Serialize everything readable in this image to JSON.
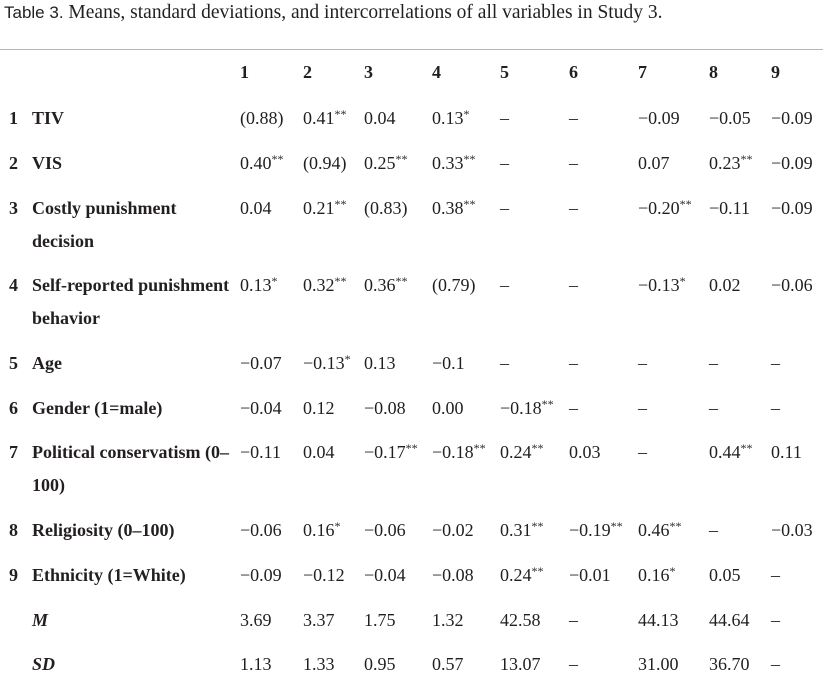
{
  "table": {
    "label": "Table 3.",
    "caption": "Means, standard deviations, and intercorrelations of all variables in Study 3.",
    "columns": [
      "1",
      "2",
      "3",
      "4",
      "5",
      "6",
      "7",
      "8",
      "9"
    ],
    "rows": [
      {
        "num": "1",
        "label": "TIV",
        "cells": [
          "(0.88)",
          {
            "text": "0.41",
            "sig": "**"
          },
          "0.04",
          {
            "text": "0.13",
            "sig": "*"
          },
          "–",
          "–",
          "−0.09",
          "−0.05",
          "−0.09"
        ]
      },
      {
        "num": "2",
        "label": "VIS",
        "cells": [
          {
            "text": "0.40",
            "sig": "**"
          },
          "(0.94)",
          {
            "text": "0.25",
            "sig": "**"
          },
          {
            "text": "0.33",
            "sig": "**"
          },
          "–",
          "–",
          "0.07",
          {
            "text": "0.23",
            "sig": "**"
          },
          "−0.09"
        ]
      },
      {
        "num": "3",
        "label": "Costly punishment decision",
        "cells": [
          "0.04",
          {
            "text": "0.21",
            "sig": "**"
          },
          "(0.83)",
          {
            "text": "0.38",
            "sig": "**"
          },
          "–",
          "–",
          {
            "text": "−0.20",
            "sig": "**"
          },
          "−0.11",
          "−0.09"
        ]
      },
      {
        "num": "4",
        "label": "Self-reported punishment behavior",
        "cells": [
          {
            "text": "0.13",
            "sig": "*"
          },
          {
            "text": "0.32",
            "sig": "**"
          },
          {
            "text": "0.36",
            "sig": "**"
          },
          "(0.79)",
          "–",
          "–",
          {
            "text": "−0.13",
            "sig": "*"
          },
          "0.02",
          "−0.06"
        ]
      },
      {
        "num": "5",
        "label": "Age",
        "cells": [
          "−0.07",
          {
            "text": "−0.13",
            "sig": "*"
          },
          "0.13",
          "−0.1",
          "–",
          "–",
          "–",
          "–",
          "–"
        ]
      },
      {
        "num": "6",
        "label": "Gender (1=male)",
        "cells": [
          "−0.04",
          "0.12",
          "−0.08",
          "0.00",
          {
            "text": "−0.18",
            "sig": "**"
          },
          "–",
          "–",
          "–",
          "–"
        ]
      },
      {
        "num": "7",
        "label": "Political conservatism (0–100)",
        "cells": [
          "−0.11",
          "0.04",
          {
            "text": "−0.17",
            "sig": "**"
          },
          {
            "text": "−0.18",
            "sig": "**"
          },
          {
            "text": "0.24",
            "sig": "**"
          },
          "0.03",
          "–",
          {
            "text": "0.44",
            "sig": "**"
          },
          "0.11"
        ]
      },
      {
        "num": "8",
        "label": "Religiosity (0–100)",
        "cells": [
          "−0.06",
          {
            "text": "0.16",
            "sig": "*"
          },
          "−0.06",
          "−0.02",
          {
            "text": "0.31",
            "sig": "**"
          },
          {
            "text": "−0.19",
            "sig": "**"
          },
          {
            "text": "0.46",
            "sig": "**"
          },
          "–",
          "−0.03"
        ]
      },
      {
        "num": "9",
        "label": "Ethnicity (1=White)",
        "cells": [
          "−0.09",
          "−0.12",
          "−0.04",
          "−0.08",
          {
            "text": "0.24",
            "sig": "**"
          },
          "−0.01",
          {
            "text": "0.16",
            "sig": "*"
          },
          "0.05",
          "–"
        ]
      },
      {
        "label": "M",
        "italic": true,
        "cells": [
          "3.69",
          "3.37",
          "1.75",
          "1.32",
          "42.58",
          "–",
          "44.13",
          "44.64",
          "–"
        ]
      },
      {
        "label": "SD",
        "italic": true,
        "cells": [
          "1.13",
          "1.33",
          "0.95",
          "0.57",
          "13.07",
          "–",
          "31.00",
          "36.70",
          "–"
        ]
      }
    ]
  }
}
